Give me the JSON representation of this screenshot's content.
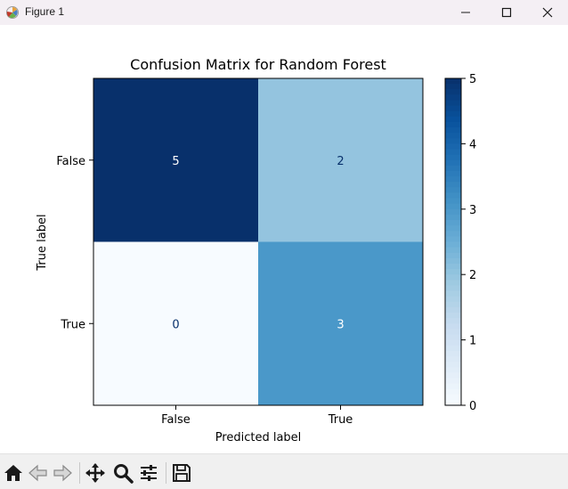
{
  "window": {
    "title": "Figure 1",
    "icons": [
      "matplotlib-logo-icon",
      "minimize-icon",
      "maximize-icon",
      "close-icon"
    ]
  },
  "chart_data": {
    "type": "heatmap",
    "title": "Confusion Matrix for Random Forest",
    "xlabel": "Predicted label",
    "ylabel": "True label",
    "x_categories": [
      "False",
      "True"
    ],
    "y_categories": [
      "False",
      "True"
    ],
    "values": [
      [
        5,
        2
      ],
      [
        0,
        3
      ]
    ],
    "colormap": "Blues",
    "vmin": 0,
    "vmax": 5,
    "colorbar_ticks": [
      "0",
      "1",
      "2",
      "3",
      "4",
      "5"
    ],
    "colors": {
      "low": "#f7fbff",
      "high": "#08306b",
      "text_light": "#ffffff",
      "text_dark": "#08306b"
    }
  },
  "toolbar": {
    "icons": [
      "home-icon",
      "back-icon",
      "forward-icon",
      "pan-icon",
      "zoom-icon",
      "configure-subplots-icon",
      "save-icon"
    ]
  }
}
